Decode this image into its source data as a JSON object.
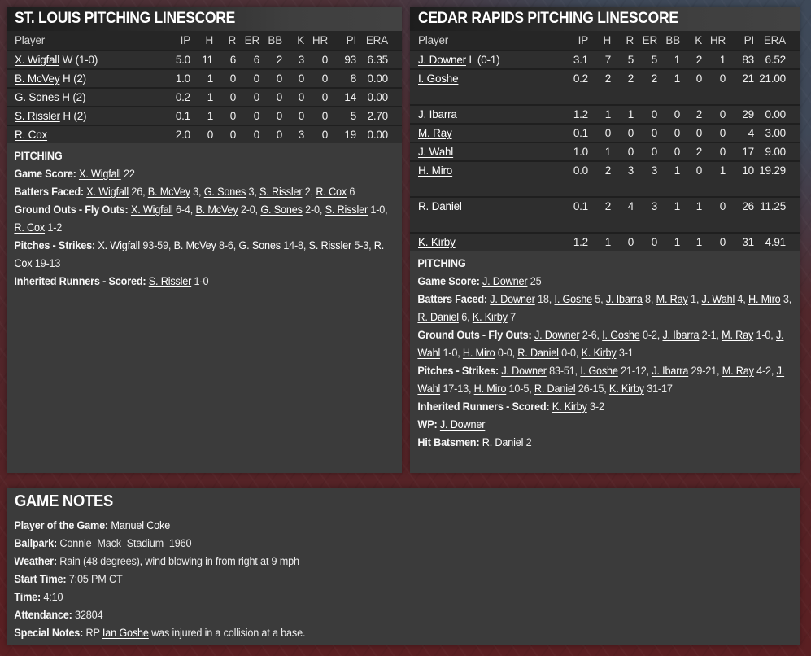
{
  "panels": {
    "stl": {
      "title": "ST. LOUIS PITCHING LINESCORE",
      "columns": [
        "Player",
        "IP",
        "H",
        "R",
        "ER",
        "BB",
        "K",
        "HR",
        "PI",
        "ERA"
      ],
      "rows": [
        {
          "player": "X. Wigfall",
          "tag": "W (1-0)",
          "stats": [
            "5.0",
            "11",
            "6",
            "6",
            "2",
            "3",
            "0",
            "93",
            "6.35"
          ]
        },
        {
          "player": "B. McVey",
          "tag": "H (2)",
          "stats": [
            "1.0",
            "1",
            "0",
            "0",
            "0",
            "0",
            "0",
            "8",
            "0.00"
          ]
        },
        {
          "player": "G. Sones",
          "tag": "H (2)",
          "stats": [
            "0.2",
            "1",
            "0",
            "0",
            "0",
            "0",
            "0",
            "14",
            "0.00"
          ]
        },
        {
          "player": "S. Rissler",
          "tag": "H (2)",
          "stats": [
            "0.1",
            "1",
            "0",
            "0",
            "0",
            "0",
            "0",
            "5",
            "2.70"
          ]
        },
        {
          "player": "R. Cox",
          "tag": "",
          "stats": [
            "2.0",
            "0",
            "0",
            "0",
            "0",
            "3",
            "0",
            "19",
            "0.00"
          ]
        }
      ],
      "notes_heading": "PITCHING",
      "notes": [
        [
          [
            "b",
            "Game Score:"
          ],
          [
            "t",
            " "
          ],
          [
            "l",
            "X. Wigfall"
          ],
          [
            "t",
            " 22"
          ]
        ],
        [
          [
            "b",
            "Batters Faced:"
          ],
          [
            "t",
            " "
          ],
          [
            "l",
            "X. Wigfall"
          ],
          [
            "t",
            " 26, "
          ],
          [
            "l",
            "B. McVey"
          ],
          [
            "t",
            " 3, "
          ],
          [
            "l",
            "G. Sones"
          ],
          [
            "t",
            " 3, "
          ],
          [
            "l",
            "S. Rissler"
          ],
          [
            "t",
            " 2, "
          ],
          [
            "l",
            "R. Cox"
          ],
          [
            "t",
            " 6"
          ]
        ],
        [
          [
            "b",
            "Ground Outs - Fly Outs:"
          ],
          [
            "t",
            " "
          ],
          [
            "l",
            "X. Wigfall"
          ],
          [
            "t",
            " 6-4, "
          ],
          [
            "l",
            "B. McVey"
          ],
          [
            "t",
            " 2-0, "
          ],
          [
            "l",
            "G. Sones"
          ],
          [
            "t",
            " 2-0, "
          ],
          [
            "l",
            "S. Rissler"
          ],
          [
            "t",
            " 1-0, "
          ],
          [
            "l",
            "R. Cox"
          ],
          [
            "t",
            " 1-2"
          ]
        ],
        [
          [
            "b",
            "Pitches - Strikes:"
          ],
          [
            "t",
            " "
          ],
          [
            "l",
            "X. Wigfall"
          ],
          [
            "t",
            " 93-59, "
          ],
          [
            "l",
            "B. McVey"
          ],
          [
            "t",
            " 8-6, "
          ],
          [
            "l",
            "G. Sones"
          ],
          [
            "t",
            " 14-8, "
          ],
          [
            "l",
            "S. Rissler"
          ],
          [
            "t",
            " 5-3, "
          ],
          [
            "l",
            "R. Cox"
          ],
          [
            "t",
            " 19-13"
          ]
        ],
        [
          [
            "b",
            "Inherited Runners - Scored:"
          ],
          [
            "t",
            " "
          ],
          [
            "l",
            "S. Rissler"
          ],
          [
            "t",
            " 1-0"
          ]
        ]
      ]
    },
    "ced": {
      "title": "CEDAR RAPIDS PITCHING LINESCORE",
      "columns": [
        "Player",
        "IP",
        "H",
        "R",
        "ER",
        "BB",
        "K",
        "HR",
        "PI",
        "ERA"
      ],
      "rows": [
        {
          "player": "J. Downer",
          "tag": "L (0-1)",
          "stats": [
            "3.1",
            "7",
            "5",
            "5",
            "1",
            "2",
            "1",
            "83",
            "6.52"
          ]
        },
        {
          "player": "I. Goshe",
          "tag": "",
          "tall": true,
          "stats": [
            "0.2",
            "2",
            "2",
            "2",
            "1",
            "0",
            "0",
            "21",
            "21.00"
          ]
        },
        {
          "player": "J. Ibarra",
          "tag": "",
          "stats": [
            "1.2",
            "1",
            "1",
            "0",
            "0",
            "2",
            "0",
            "29",
            "0.00"
          ]
        },
        {
          "player": "M. Ray",
          "tag": "",
          "stats": [
            "0.1",
            "0",
            "0",
            "0",
            "0",
            "0",
            "0",
            "4",
            "3.00"
          ]
        },
        {
          "player": "J. Wahl",
          "tag": "",
          "stats": [
            "1.0",
            "1",
            "0",
            "0",
            "0",
            "2",
            "0",
            "17",
            "9.00"
          ]
        },
        {
          "player": "H. Miro",
          "tag": "",
          "tall": true,
          "stats": [
            "0.0",
            "2",
            "3",
            "3",
            "1",
            "0",
            "1",
            "10",
            "19.29"
          ]
        },
        {
          "player": "R. Daniel",
          "tag": "",
          "tall": true,
          "stats": [
            "0.1",
            "2",
            "4",
            "3",
            "1",
            "1",
            "0",
            "26",
            "11.25"
          ]
        },
        {
          "player": "K. Kirby",
          "tag": "",
          "stats": [
            "1.2",
            "1",
            "0",
            "0",
            "1",
            "1",
            "0",
            "31",
            "4.91"
          ]
        }
      ],
      "notes_heading": "PITCHING",
      "notes": [
        [
          [
            "b",
            "Game Score:"
          ],
          [
            "t",
            " "
          ],
          [
            "l",
            "J. Downer"
          ],
          [
            "t",
            " 25"
          ]
        ],
        [
          [
            "b",
            "Batters Faced:"
          ],
          [
            "t",
            " "
          ],
          [
            "l",
            "J. Downer"
          ],
          [
            "t",
            " 18, "
          ],
          [
            "l",
            "I. Goshe"
          ],
          [
            "t",
            " 5, "
          ],
          [
            "l",
            "J. Ibarra"
          ],
          [
            "t",
            " 8, "
          ],
          [
            "l",
            "M. Ray"
          ],
          [
            "t",
            " 1, "
          ],
          [
            "l",
            "J. Wahl"
          ],
          [
            "t",
            " 4, "
          ],
          [
            "l",
            "H. Miro"
          ],
          [
            "t",
            " 3, "
          ],
          [
            "l",
            "R. Daniel"
          ],
          [
            "t",
            " 6, "
          ],
          [
            "l",
            "K. Kirby"
          ],
          [
            "t",
            " 7"
          ]
        ],
        [
          [
            "b",
            "Ground Outs - Fly Outs:"
          ],
          [
            "t",
            " "
          ],
          [
            "l",
            "J. Downer"
          ],
          [
            "t",
            " 2-6, "
          ],
          [
            "l",
            "I. Goshe"
          ],
          [
            "t",
            " 0-2, "
          ],
          [
            "l",
            "J. Ibarra"
          ],
          [
            "t",
            " 2-1, "
          ],
          [
            "l",
            "M. Ray"
          ],
          [
            "t",
            " 1-0, "
          ],
          [
            "l",
            "J. Wahl"
          ],
          [
            "t",
            " 1-0, "
          ],
          [
            "l",
            "H. Miro"
          ],
          [
            "t",
            " 0-0, "
          ],
          [
            "l",
            "R. Daniel"
          ],
          [
            "t",
            " 0-0, "
          ],
          [
            "l",
            "K. Kirby"
          ],
          [
            "t",
            " 3-1"
          ]
        ],
        [
          [
            "b",
            "Pitches - Strikes:"
          ],
          [
            "t",
            " "
          ],
          [
            "l",
            "J. Downer"
          ],
          [
            "t",
            " 83-51, "
          ],
          [
            "l",
            "I. Goshe"
          ],
          [
            "t",
            " 21-12, "
          ],
          [
            "l",
            "J. Ibarra"
          ],
          [
            "t",
            " 29-21, "
          ],
          [
            "l",
            "M. Ray"
          ],
          [
            "t",
            " 4-2, "
          ],
          [
            "l",
            "J. Wahl"
          ],
          [
            "t",
            " 17-13, "
          ],
          [
            "l",
            "H. Miro"
          ],
          [
            "t",
            " 10-5, "
          ],
          [
            "l",
            "R. Daniel"
          ],
          [
            "t",
            " 26-15, "
          ],
          [
            "l",
            "K. Kirby"
          ],
          [
            "t",
            " 31-17"
          ]
        ],
        [
          [
            "b",
            "Inherited Runners - Scored:"
          ],
          [
            "t",
            " "
          ],
          [
            "l",
            "K. Kirby"
          ],
          [
            "t",
            " 3-2"
          ]
        ],
        [
          [
            "b",
            "WP:"
          ],
          [
            "t",
            " "
          ],
          [
            "l",
            "J. Downer"
          ]
        ],
        [
          [
            "b",
            "Hit Batsmen:"
          ],
          [
            "t",
            " "
          ],
          [
            "l",
            "R. Daniel"
          ],
          [
            "t",
            " 2"
          ]
        ]
      ]
    }
  },
  "game_notes": {
    "title": "GAME NOTES",
    "notes": [
      [
        [
          "b",
          "Player of the Game:"
        ],
        [
          "t",
          " "
        ],
        [
          "l",
          "Manuel Coke"
        ]
      ],
      [
        [
          "b",
          "Ballpark:"
        ],
        [
          "t",
          " Connie_Mack_Stadium_1960"
        ]
      ],
      [
        [
          "b",
          "Weather:"
        ],
        [
          "t",
          " Rain (48 degrees), wind blowing in from right at 9 mph"
        ]
      ],
      [
        [
          "b",
          "Start Time:"
        ],
        [
          "t",
          " 7:05 PM CT"
        ]
      ],
      [
        [
          "b",
          "Time:"
        ],
        [
          "t",
          " 4:10"
        ]
      ],
      [
        [
          "b",
          "Attendance:"
        ],
        [
          "t",
          " 32804"
        ]
      ],
      [
        [
          "b",
          "Special Notes:"
        ],
        [
          "t",
          " RP "
        ],
        [
          "l",
          "Ian Goshe"
        ],
        [
          "t",
          " was injured in a collision at a base."
        ]
      ]
    ]
  },
  "colors": {
    "panel_bg": "#3b3b3b",
    "table_row_bg": "#2e2e2e",
    "table_header_bg": "#262626",
    "title_bar_dark": "#1d1d1d",
    "title_bar_light": "#424242",
    "row_separator": "#1f1f1f",
    "page_maroon": "#4c3036",
    "page_red": "#5a1f22",
    "page_slate": "#3e4a5a",
    "text": "#f1f1f1",
    "link": "#ffffff"
  }
}
